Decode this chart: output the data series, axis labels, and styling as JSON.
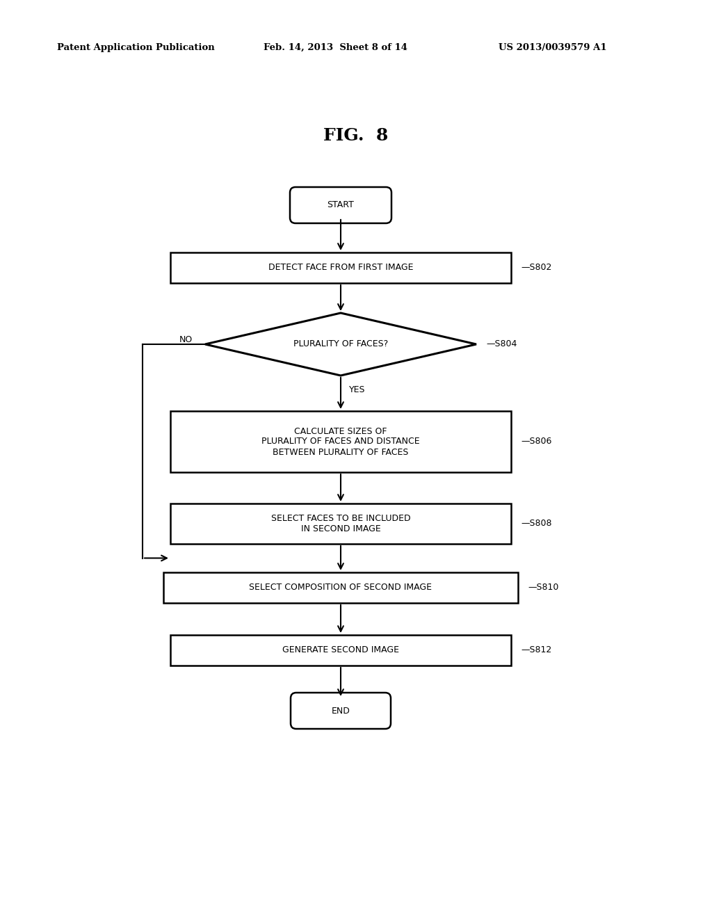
{
  "background_color": "#ffffff",
  "header_left": "Patent Application Publication",
  "header_center": "Feb. 14, 2013  Sheet 8 of 14",
  "header_right": "US 2013/0039579 A1",
  "fig_label": "FIG.  8",
  "start_label": "START",
  "end_label": "END",
  "nodes": [
    {
      "id": "s802",
      "label": "DETECT FACE FROM FIRST IMAGE",
      "tag": "S802"
    },
    {
      "id": "s804",
      "label": "PLURALITY OF FACES?",
      "tag": "S804"
    },
    {
      "id": "s806",
      "label": "CALCULATE SIZES OF\nPLURALITY OF FACES AND DISTANCE\nBETWEEN PLURALITY OF FACES",
      "tag": "S806"
    },
    {
      "id": "s808",
      "label": "SELECT FACES TO BE INCLUDED\nIN SECOND IMAGE",
      "tag": "S808"
    },
    {
      "id": "s810",
      "label": "SELECT COMPOSITION OF SECOND IMAGE",
      "tag": "S810"
    },
    {
      "id": "s812",
      "label": "GENERATE SECOND IMAGE",
      "tag": "S812"
    }
  ],
  "yes_label": "YES",
  "no_label": "NO"
}
